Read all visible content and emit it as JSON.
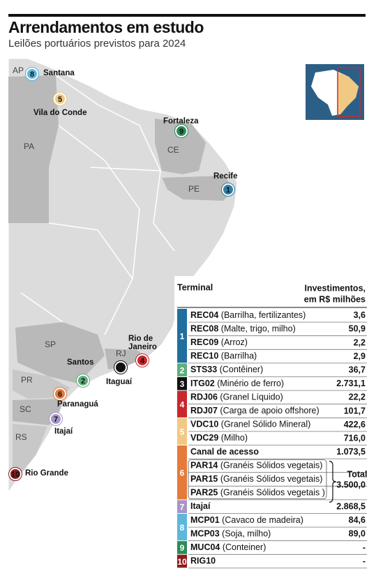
{
  "header": {
    "title": "Arrendamentos em estudo",
    "subtitle": "Leilões portuários previstos para 2024"
  },
  "map": {
    "states": [
      "AP",
      "PA",
      "CE",
      "PE",
      "SP",
      "RJ",
      "PR",
      "SC",
      "RS"
    ],
    "ports": [
      {
        "number": "1",
        "label": [
          "Recife"
        ],
        "color": "#2f7ea6"
      },
      {
        "number": "2",
        "label": [
          "Santos"
        ],
        "color": "#5fae7c"
      },
      {
        "number": "3",
        "label": [
          "Itaguaí"
        ],
        "color": "#111111"
      },
      {
        "number": "4",
        "label": [
          "Rio de",
          "Janeiro"
        ],
        "color": "#c7272d"
      },
      {
        "number": "5",
        "label": [
          "Vila do Conde"
        ],
        "color": "#f1c983"
      },
      {
        "number": "6",
        "label": [
          "Paranaguá"
        ],
        "color": "#e57a3b"
      },
      {
        "number": "7",
        "label": [
          "Itajaí"
        ],
        "color": "#a795c9"
      },
      {
        "number": "8",
        "label": [
          "Santana"
        ],
        "color": "#5db7dd"
      },
      {
        "number": "9",
        "label": [
          "Fortaleza"
        ],
        "color": "#2e8b57"
      },
      {
        "number": "10",
        "label": [
          "Rio Grande"
        ],
        "color": "#8e1b1b"
      }
    ]
  },
  "table": {
    "headers": [
      "Terminal",
      "Investimentos,",
      "em R$ milhões"
    ],
    "groups": [
      {
        "number": "1",
        "color": "#1f6f9f",
        "rows": [
          {
            "code": "REC04",
            "desc": "(Barrilha, fertilizantes)",
            "value": "3,6"
          },
          {
            "code": "REC08",
            "desc": "(Malte, trigo, milho)",
            "value": "50,9"
          },
          {
            "code": "REC09",
            "desc": "(Arroz)",
            "value": "2,2"
          },
          {
            "code": "REC10",
            "desc": "(Barrilha)",
            "value": "2,9"
          }
        ]
      },
      {
        "number": "2",
        "color": "#5fae7c",
        "rows": [
          {
            "code": "STS33",
            "desc": "(Contêiner)",
            "value": "36,7"
          }
        ]
      },
      {
        "number": "3",
        "color": "#111111",
        "rows": [
          {
            "code": "ITG02",
            "desc": "(Minério de ferro)",
            "value": "2.731,1"
          }
        ]
      },
      {
        "number": "4",
        "color": "#c7272d",
        "rows": [
          {
            "code": "RDJ06",
            "desc": "(Granel Líquido)",
            "value": "22,2"
          },
          {
            "code": "RDJ07",
            "desc": "(Carga de apoio offshore)",
            "value": "101,7"
          }
        ]
      },
      {
        "number": "5",
        "color": "#f1c983",
        "rows": [
          {
            "code": "VDC10",
            "desc": "(Granel Sólido Mineral)",
            "value": "422,6"
          },
          {
            "code": "VDC29",
            "desc": "(Milho)",
            "value": "716,0"
          }
        ]
      },
      {
        "number": "6",
        "color": "#e57a3b",
        "rows": [
          {
            "code": "Canal de acesso",
            "value": "1.073,5"
          },
          {
            "code": "PAR14",
            "desc": "(Granéis Sólidos vegetais)"
          },
          {
            "code": "PAR15",
            "desc": "(Granéis Sólidos vegetais)"
          },
          {
            "code": "PAR25",
            "desc": "(Granéis Sólidos vegetais )"
          }
        ],
        "total": {
          "label": "Total",
          "value": "3.500,0"
        }
      },
      {
        "number": "7",
        "color": "#a795c9",
        "rows": [
          {
            "code": "Itajaí",
            "value": "2.868,5"
          }
        ]
      },
      {
        "number": "8",
        "color": "#5db7dd",
        "rows": [
          {
            "code": "MCP01",
            "desc": "(Cavaco de madeira)",
            "value": "84,6"
          },
          {
            "code": "MCP03",
            "desc": "(Soja, milho)",
            "value": "89,0"
          }
        ]
      },
      {
        "number": "9",
        "color": "#2e8b57",
        "rows": [
          {
            "code": "MUC04",
            "desc": "(Conteiner)",
            "value": "-"
          }
        ]
      },
      {
        "number": "10",
        "color": "#8e1b1b",
        "rows": [
          {
            "code": "RIG10",
            "value": "-"
          }
        ]
      }
    ]
  }
}
